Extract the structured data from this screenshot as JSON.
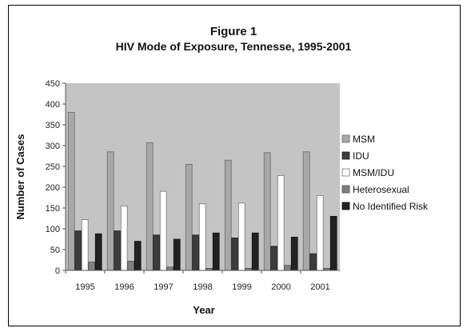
{
  "chart_data": {
    "type": "bar",
    "title": "Figure 1",
    "subtitle": "HIV Mode of Exposure, Tennesse, 1995-2001",
    "xlabel": "Year",
    "ylabel": "Number of Cases",
    "ylim": [
      0,
      450
    ],
    "yticks": [
      0,
      50,
      100,
      150,
      200,
      250,
      300,
      350,
      400,
      450
    ],
    "categories": [
      "1995",
      "1996",
      "1997",
      "1998",
      "1999",
      "2000",
      "2001"
    ],
    "series": [
      {
        "name": "MSM",
        "values": [
          380,
          285,
          307,
          255,
          265,
          283,
          285
        ]
      },
      {
        "name": "IDU",
        "values": [
          95,
          95,
          85,
          85,
          78,
          58,
          40
        ]
      },
      {
        "name": "MSM/IDU",
        "values": [
          122,
          155,
          190,
          160,
          162,
          228,
          180
        ]
      },
      {
        "name": "Heterosexual",
        "values": [
          20,
          22,
          8,
          5,
          5,
          12,
          5
        ]
      },
      {
        "name": "No Identified Risk",
        "values": [
          88,
          70,
          75,
          90,
          90,
          80,
          130
        ]
      }
    ],
    "legend_position": "right",
    "grid": false,
    "plot_background": "#c4c4c4",
    "series_colors": [
      "#a8a8a8",
      "#3c3c3c",
      "#ffffff",
      "#808080",
      "#222222"
    ]
  }
}
